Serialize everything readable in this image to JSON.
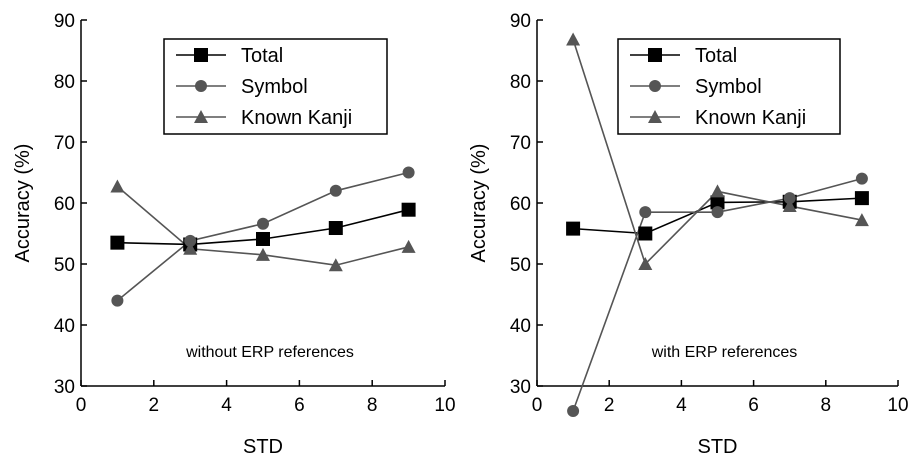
{
  "chart_data": [
    {
      "type": "line",
      "annotation": "without ERP references",
      "xlabel": "STD",
      "ylabel": "Accuracy (%)",
      "xlim": [
        0,
        10
      ],
      "ylim": [
        30,
        90
      ],
      "xticks": [
        0,
        2,
        4,
        6,
        8,
        10
      ],
      "yticks": [
        30,
        40,
        50,
        60,
        70,
        80,
        90
      ],
      "grid": false,
      "legend_position": "top-right",
      "x": [
        1,
        3,
        5,
        7,
        9
      ],
      "series": [
        {
          "name": "Total",
          "marker": "square",
          "values": [
            53.5,
            53.2,
            54.1,
            55.9,
            58.9
          ]
        },
        {
          "name": "Symbol",
          "marker": "circle",
          "values": [
            44.0,
            53.8,
            56.6,
            62.0,
            65.0
          ]
        },
        {
          "name": "Known Kanji",
          "marker": "triangle",
          "values": [
            62.7,
            52.5,
            51.5,
            49.8,
            52.8
          ]
        }
      ]
    },
    {
      "type": "line",
      "annotation": "with ERP references",
      "xlabel": "STD",
      "ylabel": "Accuracy (%)",
      "xlim": [
        0,
        10
      ],
      "ylim": [
        30,
        90
      ],
      "xticks": [
        0,
        2,
        4,
        6,
        8,
        10
      ],
      "yticks": [
        30,
        40,
        50,
        60,
        70,
        80,
        90
      ],
      "grid": false,
      "legend_position": "top-right",
      "x": [
        1,
        3,
        5,
        7,
        9
      ],
      "series": [
        {
          "name": "Total",
          "marker": "square",
          "values": [
            55.8,
            55.0,
            60.1,
            60.2,
            60.8
          ]
        },
        {
          "name": "Symbol",
          "marker": "circle",
          "values": [
            25.9,
            58.5,
            58.5,
            60.8,
            64.0
          ]
        },
        {
          "name": "Known Kanji",
          "marker": "triangle",
          "values": [
            86.8,
            50.0,
            61.9,
            59.5,
            57.2
          ]
        }
      ]
    }
  ]
}
